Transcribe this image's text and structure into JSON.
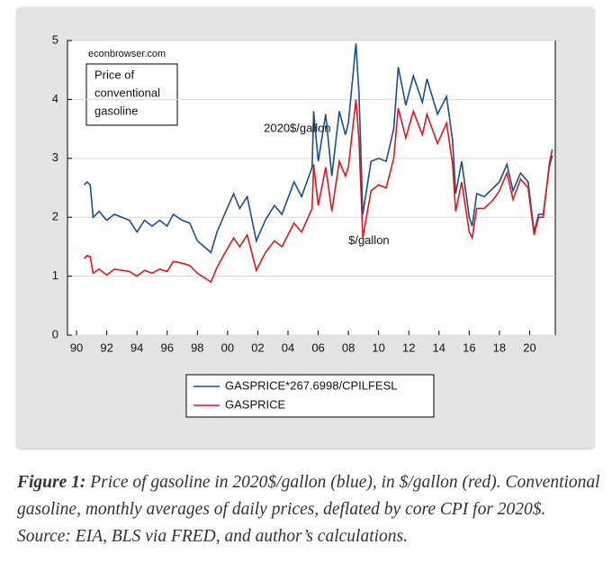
{
  "chart_data": {
    "type": "line",
    "watermark": "econbrowser.com",
    "box_text": [
      "Price of",
      "conventional",
      "gasoline"
    ],
    "annotations": [
      {
        "text": "2020$/gallon",
        "series": 0,
        "x": 2002.4,
        "y": 3.5
      },
      {
        "text": "$/gallon",
        "series": 1,
        "x": 2008.0,
        "y": 1.6
      }
    ],
    "x": [
      1990.5,
      1990.7,
      1990.9,
      1991.1,
      1991.5,
      1992.0,
      1992.5,
      1993.0,
      1993.5,
      1994.0,
      1994.5,
      1995.0,
      1995.5,
      1996.0,
      1996.4,
      1997.0,
      1997.5,
      1998.0,
      1998.9,
      1999.3,
      1999.8,
      2000.4,
      2000.8,
      2001.3,
      2001.9,
      2002.5,
      2003.1,
      2003.6,
      2004.4,
      2004.9,
      2005.6,
      2005.7,
      2006.0,
      2006.5,
      2006.9,
      2007.4,
      2007.8,
      2008.0,
      2008.5,
      2008.7,
      2008.95,
      2009.5,
      2010.0,
      2010.5,
      2011.0,
      2011.3,
      2011.8,
      2012.3,
      2012.9,
      2013.2,
      2013.9,
      2014.5,
      2014.9,
      2015.1,
      2015.5,
      2016.0,
      2016.2,
      2016.5,
      2017.0,
      2017.6,
      2018.0,
      2018.5,
      2018.9,
      2019.4,
      2019.9,
      2020.3,
      2020.6,
      2020.9,
      2021.3,
      2021.5
    ],
    "series": [
      {
        "name": "GASPRICE*267.6998/CPILFESL",
        "color": "#1c4f8a",
        "values": [
          2.55,
          2.6,
          2.55,
          2.0,
          2.1,
          1.95,
          2.05,
          2.0,
          1.95,
          1.75,
          1.95,
          1.85,
          1.95,
          1.85,
          2.05,
          1.95,
          1.9,
          1.6,
          1.4,
          1.75,
          2.05,
          2.4,
          2.15,
          2.35,
          1.6,
          1.95,
          2.2,
          2.05,
          2.6,
          2.35,
          2.85,
          3.8,
          2.95,
          3.75,
          2.7,
          3.8,
          3.4,
          3.6,
          4.95,
          4.1,
          2.05,
          2.95,
          3.0,
          2.95,
          3.5,
          4.55,
          3.9,
          4.4,
          3.95,
          4.35,
          3.75,
          4.05,
          3.3,
          2.4,
          2.95,
          2.0,
          1.85,
          2.4,
          2.35,
          2.5,
          2.6,
          2.9,
          2.45,
          2.75,
          2.6,
          1.75,
          2.05,
          2.05,
          2.85,
          3.05
        ]
      },
      {
        "name": "GASPRICE",
        "color": "#e0161f",
        "values": [
          1.3,
          1.35,
          1.33,
          1.05,
          1.12,
          1.02,
          1.12,
          1.1,
          1.08,
          1.0,
          1.1,
          1.05,
          1.12,
          1.08,
          1.25,
          1.22,
          1.18,
          1.05,
          0.9,
          1.15,
          1.38,
          1.65,
          1.5,
          1.7,
          1.1,
          1.4,
          1.6,
          1.5,
          1.9,
          1.75,
          2.15,
          2.9,
          2.2,
          2.85,
          2.1,
          2.95,
          2.7,
          2.85,
          4.0,
          3.3,
          1.65,
          2.45,
          2.55,
          2.5,
          3.0,
          3.85,
          3.35,
          3.8,
          3.4,
          3.75,
          3.25,
          3.6,
          2.9,
          2.1,
          2.6,
          1.75,
          1.65,
          2.15,
          2.15,
          2.3,
          2.45,
          2.75,
          2.3,
          2.65,
          2.5,
          1.7,
          2.0,
          2.0,
          2.9,
          3.15
        ]
      }
    ],
    "xlim": [
      1989.4,
      2021.7
    ],
    "ylim": [
      0,
      5
    ],
    "xticks": [
      {
        "value": 1990,
        "label": "90"
      },
      {
        "value": 1992,
        "label": "92"
      },
      {
        "value": 1994,
        "label": "94"
      },
      {
        "value": 1996,
        "label": "96"
      },
      {
        "value": 1998,
        "label": "98"
      },
      {
        "value": 2000,
        "label": "00"
      },
      {
        "value": 2002,
        "label": "02"
      },
      {
        "value": 2004,
        "label": "04"
      },
      {
        "value": 2006,
        "label": "06"
      },
      {
        "value": 2008,
        "label": "08"
      },
      {
        "value": 2010,
        "label": "10"
      },
      {
        "value": 2012,
        "label": "12"
      },
      {
        "value": 2014,
        "label": "14"
      },
      {
        "value": 2016,
        "label": "16"
      },
      {
        "value": 2018,
        "label": "18"
      },
      {
        "value": 2020,
        "label": "20"
      }
    ],
    "yticks": [
      0,
      1,
      2,
      3,
      4,
      5
    ],
    "grid": true
  },
  "caption": {
    "label": "Figure 1:",
    "text": " Price of gasoline in 2020$/gallon (blue), in $/gallon (red). Conventional gasoline, monthly averages of daily prices, deflated by core CPI for 2020$. Source: EIA, BLS via FRED, and author’s calculations."
  }
}
